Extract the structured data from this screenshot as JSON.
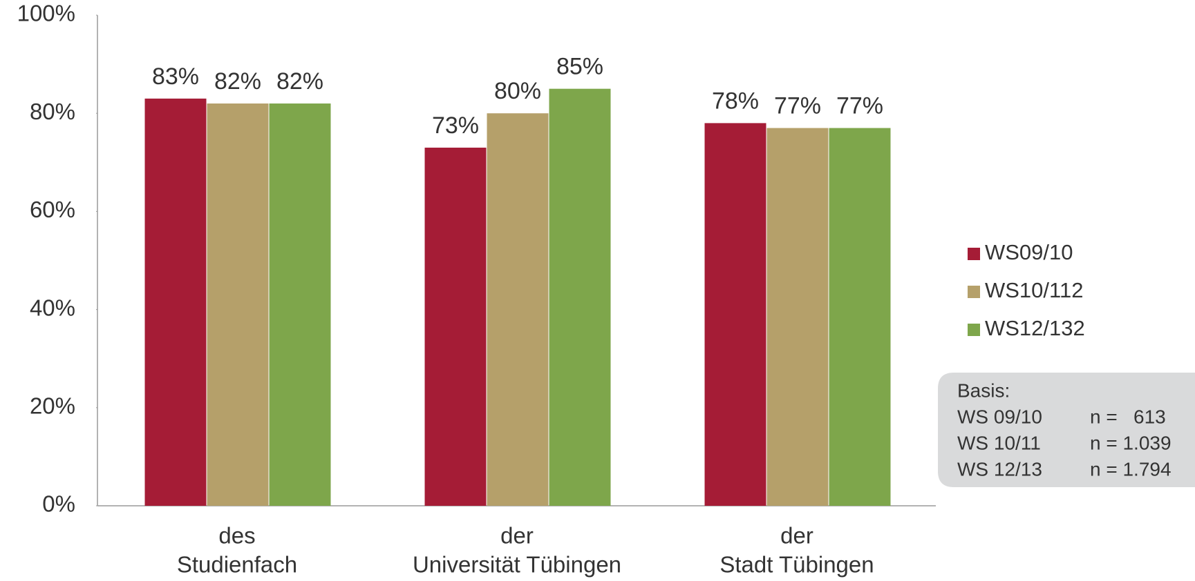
{
  "chart_data": {
    "type": "bar",
    "categories": [
      [
        "des",
        "Studienfach"
      ],
      [
        "der",
        "Universität Tübingen"
      ],
      [
        "der",
        "Stadt Tübingen"
      ]
    ],
    "series": [
      {
        "name": "WS09/10",
        "color": "#a51c36",
        "values": [
          83,
          73,
          78
        ],
        "value_labels": [
          "83%",
          "73%",
          "78%"
        ]
      },
      {
        "name": "WS10/112",
        "color": "#b5a06a",
        "values": [
          82,
          80,
          77
        ],
        "value_labels": [
          "82%",
          "80%",
          "77%"
        ]
      },
      {
        "name": "WS12/132",
        "color": "#7ea64b",
        "values": [
          82,
          85,
          77
        ],
        "value_labels": [
          "82%",
          "85%",
          "77%"
        ]
      }
    ],
    "ylim": [
      0,
      100
    ],
    "yticks": [
      {
        "value": 0,
        "label": "0%"
      },
      {
        "value": 20,
        "label": "20%"
      },
      {
        "value": 40,
        "label": "40%"
      },
      {
        "value": 60,
        "label": "60%"
      },
      {
        "value": 80,
        "label": "80%"
      },
      {
        "value": 100,
        "label": "100%"
      }
    ],
    "legend": "right",
    "basis": {
      "title": "Basis:",
      "rows": [
        [
          "WS 09/10",
          "n =   613"
        ],
        [
          "WS 10/11",
          "n = 1.039"
        ],
        [
          "WS 12/13",
          "n = 1.794"
        ]
      ]
    }
  }
}
